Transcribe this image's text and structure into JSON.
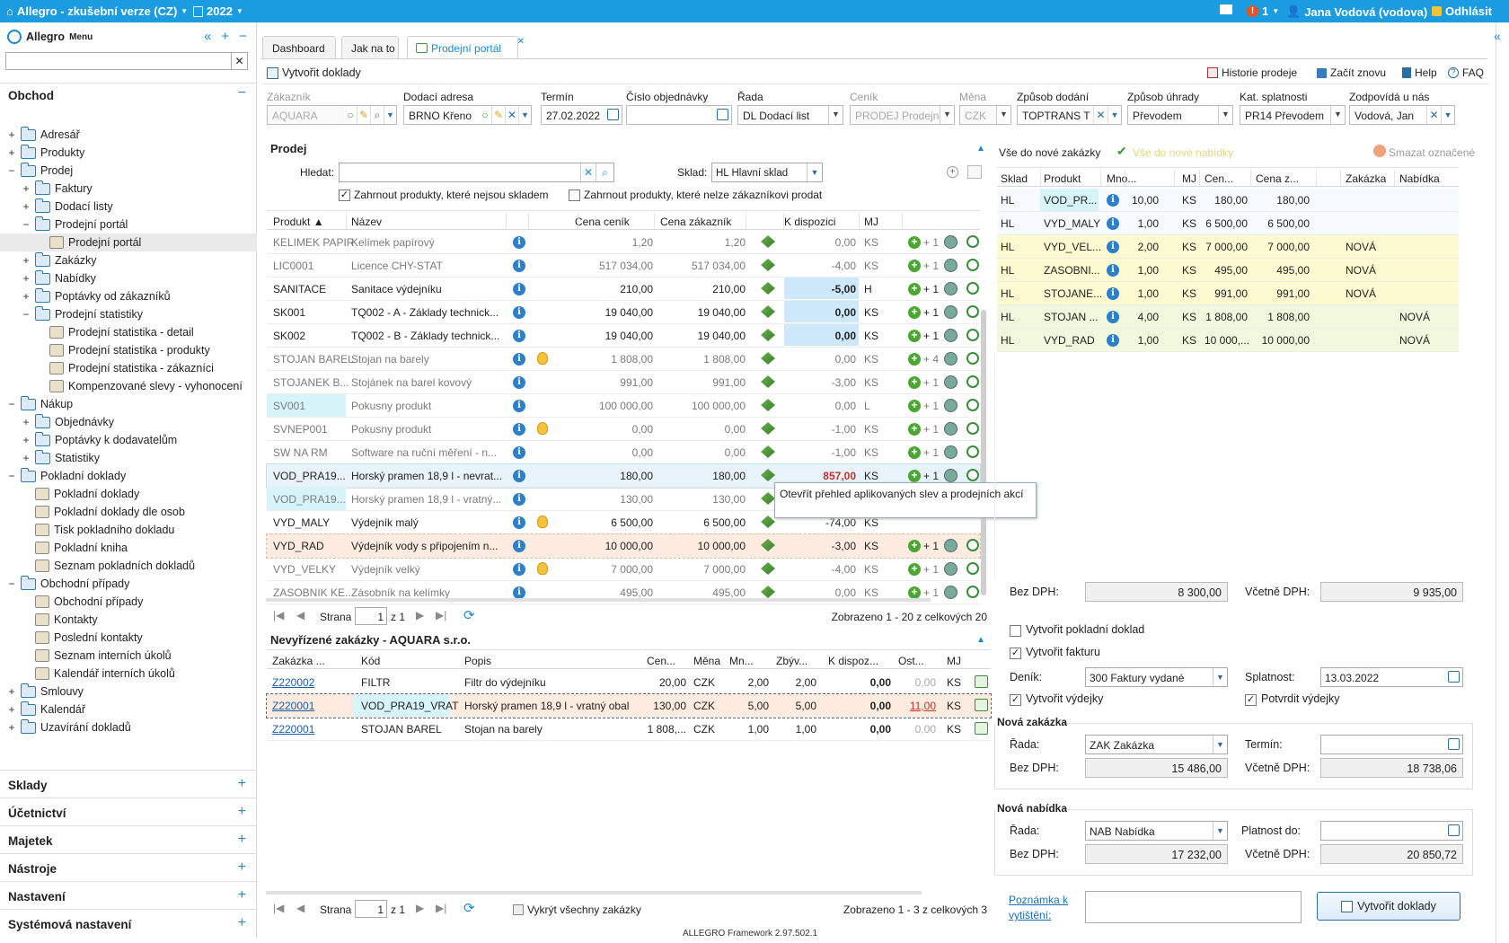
{
  "topbar": {
    "app": "Allegro - zkušební verze (CZ)",
    "year": "2022",
    "notif": "1",
    "user": "Jana Vodová (vodova)",
    "logout": "Odhlásit"
  },
  "sidebar": {
    "title": "Allegro",
    "menu_label": "Menu",
    "search_placeholder": "",
    "section": "Obchod",
    "tree": [
      {
        "l": "Adresář",
        "lv": 0,
        "t": "+",
        "i": "folder"
      },
      {
        "l": "Produkty",
        "lv": 0,
        "t": "+",
        "i": "folder"
      },
      {
        "l": "Prodej",
        "lv": 0,
        "t": "−",
        "i": "folder"
      },
      {
        "l": "Faktury",
        "lv": 1,
        "t": "+",
        "i": "folder"
      },
      {
        "l": "Dodací listy",
        "lv": 1,
        "t": "+",
        "i": "folder"
      },
      {
        "l": "Prodejní portál",
        "lv": 1,
        "t": "−",
        "i": "folder"
      },
      {
        "l": "Prodejní portál",
        "lv": 2,
        "t": "",
        "i": "item",
        "sel": true
      },
      {
        "l": "Zakázky",
        "lv": 1,
        "t": "+",
        "i": "folder"
      },
      {
        "l": "Nabídky",
        "lv": 1,
        "t": "+",
        "i": "folder"
      },
      {
        "l": "Poptávky od zákazníků",
        "lv": 1,
        "t": "+",
        "i": "folder"
      },
      {
        "l": "Prodejní statistiky",
        "lv": 1,
        "t": "−",
        "i": "folder"
      },
      {
        "l": "Prodejní statistika - detail",
        "lv": 2,
        "t": "",
        "i": "item"
      },
      {
        "l": "Prodejní statistika - produkty",
        "lv": 2,
        "t": "",
        "i": "item"
      },
      {
        "l": "Prodejní statistika - zákazníci",
        "lv": 2,
        "t": "",
        "i": "item"
      },
      {
        "l": "Kompenzované slevy - vyhonocení",
        "lv": 2,
        "t": "",
        "i": "item"
      },
      {
        "l": "Nákup",
        "lv": 0,
        "t": "−",
        "i": "folder"
      },
      {
        "l": "Objednávky",
        "lv": 1,
        "t": "+",
        "i": "folder"
      },
      {
        "l": "Poptávky k dodavatelům",
        "lv": 1,
        "t": "+",
        "i": "folder"
      },
      {
        "l": "Statistiky",
        "lv": 1,
        "t": "+",
        "i": "folder"
      },
      {
        "l": "Pokladní doklady",
        "lv": 0,
        "t": "−",
        "i": "folder"
      },
      {
        "l": "Pokladní doklady",
        "lv": 1,
        "t": "",
        "i": "item"
      },
      {
        "l": "Pokladní doklady dle osob",
        "lv": 1,
        "t": "",
        "i": "item"
      },
      {
        "l": "Tisk pokladního dokladu",
        "lv": 1,
        "t": "",
        "i": "item"
      },
      {
        "l": "Pokladní kniha",
        "lv": 1,
        "t": "",
        "i": "item"
      },
      {
        "l": "Seznam pokladních dokladů",
        "lv": 1,
        "t": "",
        "i": "item"
      },
      {
        "l": "Obchodní případy",
        "lv": 0,
        "t": "−",
        "i": "folder"
      },
      {
        "l": "Obchodní případy",
        "lv": 1,
        "t": "",
        "i": "item"
      },
      {
        "l": "Kontakty",
        "lv": 1,
        "t": "",
        "i": "item"
      },
      {
        "l": "Poslední kontakty",
        "lv": 1,
        "t": "",
        "i": "item"
      },
      {
        "l": "Seznam interních úkolů",
        "lv": 1,
        "t": "",
        "i": "item"
      },
      {
        "l": "Kalendář interních úkolů",
        "lv": 1,
        "t": "",
        "i": "item"
      },
      {
        "l": "Smlouvy",
        "lv": 0,
        "t": "+",
        "i": "folder"
      },
      {
        "l": "Kalendář",
        "lv": 0,
        "t": "+",
        "i": "folder"
      },
      {
        "l": "Uzavírání dokladů",
        "lv": 0,
        "t": "+",
        "i": "folder"
      }
    ],
    "sections": [
      "Sklady",
      "Účetnictví",
      "Majetek",
      "Nástroje",
      "Nastavení",
      "Systémová nastavení"
    ]
  },
  "tabs": [
    "Dashboard",
    "Jak na to",
    "Prodejní portál"
  ],
  "toolbar": {
    "create": "Vytvořit doklady",
    "history": "Historie prodeje",
    "restart": "Začít znovu",
    "help": "Help",
    "faq": "FAQ"
  },
  "fields": [
    {
      "label": "Zákazník",
      "value": "AQUARA",
      "dis": true
    },
    {
      "label": "Dodací adresa",
      "value": "BRNO  Křeno"
    },
    {
      "label": "Termín",
      "value": "27.02.2022"
    },
    {
      "label": "Číslo objednávky",
      "value": ""
    },
    {
      "label": "Řada",
      "value": "DL Dodací list"
    },
    {
      "label": "Ceník",
      "value": "PRODEJ Prodejn",
      "dis": true
    },
    {
      "label": "Měna",
      "value": "CZK",
      "dis": true
    },
    {
      "label": "Způsob dodání",
      "value": "TOPTRANS  T"
    },
    {
      "label": "Způsob úhrady",
      "value": "Převodem"
    },
    {
      "label": "Kat. splatnosti",
      "value": "PR14 Převodem"
    },
    {
      "label": "Zodpovídá u nás",
      "value": "Vodová, Jan"
    }
  ],
  "prodej": {
    "title": "Prodej",
    "search_label": "Hledat:",
    "search_value": "",
    "sklad_label": "Sklad:",
    "sklad_value": "HL Hlavní sklad",
    "chk1": "Zahrnout produkty, které nejsou skladem",
    "chk2": "Zahrnout produkty, které nelze zákazníkovi prodat",
    "cols": [
      "Produkt ▲",
      "Název",
      "Cena ceník",
      "Cena zákazník",
      "K dispozici",
      "MJ"
    ],
    "rows": [
      [
        "KELIMEK PAPIR",
        "Kelímek papírový",
        "1,20",
        "1,20",
        "0,00",
        "KS",
        "g",
        0,
        "+ 1"
      ],
      [
        "LIC0001",
        "Licence CHY-STAT",
        "517 034,00",
        "517 034,00",
        "-4,00",
        "KS",
        "g",
        0,
        "+ 1"
      ],
      [
        "SANITACE",
        "Sanitace výdejníku",
        "210,00",
        "210,00",
        "-5,00",
        "H",
        "b",
        0,
        "+ 1"
      ],
      [
        "SK001",
        "TQ002 - A - Základy technick...",
        "19 040,00",
        "19 040,00",
        "0,00",
        "KS",
        "b",
        0,
        "+ 1"
      ],
      [
        "SK002",
        "TQ002 - B - Základy technick...",
        "19 040,00",
        "19 040,00",
        "0,00",
        "KS",
        "b",
        0,
        "+ 1"
      ],
      [
        "STOJAN BAREL",
        "Stojan na barely",
        "1 808,00",
        "1 808,00",
        "0,00",
        "KS",
        "g",
        1,
        "+ 4"
      ],
      [
        "STOJANEK B...",
        "Stojánek na barel kovový",
        "991,00",
        "991,00",
        "-3,00",
        "KS",
        "g",
        0,
        "+ 1"
      ],
      [
        "SV001",
        "Pokusny produkt",
        "100 000,00",
        "100 000,00",
        "0,00",
        "L",
        "c",
        0,
        "+ 1"
      ],
      [
        "SVNEP001",
        "Pokusny produkt",
        "0,00",
        "0,00",
        "-1,00",
        "KS",
        "g",
        1,
        "+ 1"
      ],
      [
        "SW NA RM",
        "Software na ruční měření - n...",
        "0,00",
        "0,00",
        "-1,00",
        "KS",
        "g",
        0,
        "+ 1"
      ],
      [
        "VOD_PRA19...",
        "Horský pramen 18,9 l - nevrat...",
        "180,00",
        "180,00",
        "857,00",
        "KS",
        "s",
        0,
        "+ 1"
      ],
      [
        "VOD_PRA19...",
        "Horský pramen 18,9 l - vratný...",
        "130,00",
        "130,00",
        "",
        "",
        "c",
        0,
        ""
      ],
      [
        "VYD_MALY",
        "Výdejník malý",
        "6 500,00",
        "6 500,00",
        "-74,00",
        "KS",
        "n",
        1,
        ""
      ],
      [
        "VYD_RAD",
        "Výdejník vody s připojením n...",
        "10 000,00",
        "10 000,00",
        "-3,00",
        "KS",
        "o",
        0,
        "+ 1"
      ],
      [
        "VYD_VELKY",
        "Výdejník velký",
        "7 000,00",
        "7 000,00",
        "-4,00",
        "KS",
        "g",
        1,
        "+ 1"
      ],
      [
        "ZASOBNIK KE...",
        "Zásobník na kelímky",
        "495,00",
        "495,00",
        "0,00",
        "KS",
        "g",
        0,
        "+ 1"
      ]
    ],
    "tooltip": "Otevřít přehled aplikovaných slev a prodejních akcí",
    "pager_label": "Strana",
    "pager_page": "1",
    "pager_of": "z 1",
    "pager_info": "Zobrazeno 1 - 20 z celkových 20"
  },
  "orders": {
    "title": "Nevyřízené zakázky - AQUARA s.r.o.",
    "cols": [
      "Zakázka ...",
      "Kód",
      "Popis",
      "Cen...",
      "Měna",
      "Mn...",
      "Zbýv...",
      "K dispoz...",
      "Ost...",
      "MJ"
    ],
    "rows": [
      [
        "Z220002",
        "FILTR",
        "Filtr do výdejníku",
        "20,00",
        "CZK",
        "2,00",
        "2,00",
        "0,00",
        "0,00",
        "KS"
      ],
      [
        "Z220001",
        "VOD_PRA19_VRAT",
        "Horský pramen 18,9 l - vratný obal",
        "130,00",
        "CZK",
        "5,00",
        "5,00",
        "0,00",
        "11,00",
        "KS"
      ],
      [
        "Z220001",
        "STOJAN BAREL",
        "Stojan na barely",
        "1 808,...",
        "CZK",
        "1,00",
        "1,00",
        "0,00",
        "0,00",
        "KS"
      ]
    ],
    "pager_label": "Strana",
    "pager_page": "1",
    "pager_of": "z 1",
    "clear": "Vykrýt všechny zakázky",
    "pager_info": "Zobrazeno 1 - 3 z celkových 3"
  },
  "cart": {
    "all_order": "Vše do nové zakázky",
    "all_offer": "Vše do nové nabídky",
    "delete": "Smazat označené",
    "cols": [
      "Sklad",
      "Produkt",
      "Mno...",
      "MJ",
      "Cen...",
      "Cena z...",
      "Zakázka",
      "Nabídka"
    ],
    "rows": [
      [
        "HL",
        "VOD_PR...",
        "10,00",
        "KS",
        "180,00",
        "180,00",
        "",
        "",
        "w"
      ],
      [
        "HL",
        "VYD_MALY",
        "1,00",
        "KS",
        "6 500,00",
        "6 500,00",
        "",
        "",
        "w"
      ],
      [
        "HL",
        "VYD_VEL...",
        "2,00",
        "KS",
        "7 000,00",
        "7 000,00",
        "NOVÁ",
        "",
        "y"
      ],
      [
        "HL",
        "ZASOBNI...",
        "1,00",
        "KS",
        "495,00",
        "495,00",
        "NOVÁ",
        "",
        "y"
      ],
      [
        "HL",
        "STOJANE...",
        "1,00",
        "KS",
        "991,00",
        "991,00",
        "NOVÁ",
        "",
        "y"
      ],
      [
        "HL",
        "STOJAN ...",
        "4,00",
        "KS",
        "1 808,00",
        "1 808,00",
        "",
        "NOVÁ",
        "g"
      ],
      [
        "HL",
        "VYD_RAD",
        "1,00",
        "KS",
        "10 000,...",
        "10 000,00",
        "",
        "NOVÁ",
        "g"
      ]
    ],
    "bez_dph_label": "Bez DPH:",
    "bez_dph": "8 300,00",
    "vc_dph_label": "Včetně DPH:",
    "vc_dph": "9 935,00",
    "opt_cash": "Vytvořit pokladní doklad",
    "opt_invoice": "Vytvořit fakturu",
    "denik_label": "Deník:",
    "denik": "300 Faktury vydané",
    "splat_label": "Splatnost:",
    "splat": "13.03.2022",
    "opt_vydejky": "Vytvořit výdejky",
    "opt_potvrdit": "Potvrdit výdejky",
    "order": {
      "title": "Nová zakázka",
      "rada_label": "Řada:",
      "rada": "ZAK Zakázka",
      "termin_label": "Termín:",
      "termin": "",
      "bez_label": "Bez DPH:",
      "bez": "15 486,00",
      "vc_label": "Včetně DPH:",
      "vc": "18 738,06"
    },
    "offer": {
      "title": "Nová nabídka",
      "rada_label": "Řada:",
      "rada": "NAB Nabídka",
      "plat_label": "Platnost do:",
      "plat": "",
      "bez_label": "Bez DPH:",
      "bez": "17 232,00",
      "vc_label": "Včetně DPH:",
      "vc": "20 850,72"
    },
    "note_label": "Poznámka k vytištění:",
    "create": "Vytvořit doklady"
  },
  "footer": "ALLEGRO Framework 2.97.502.1",
  "colors": {
    "accent": "#1b9be0",
    "hl_blue": "#cde8fb",
    "hl_yellow": "#fefbd2",
    "hl_orange": "#fde9da",
    "hl_cyan": "#d8f4fb"
  }
}
